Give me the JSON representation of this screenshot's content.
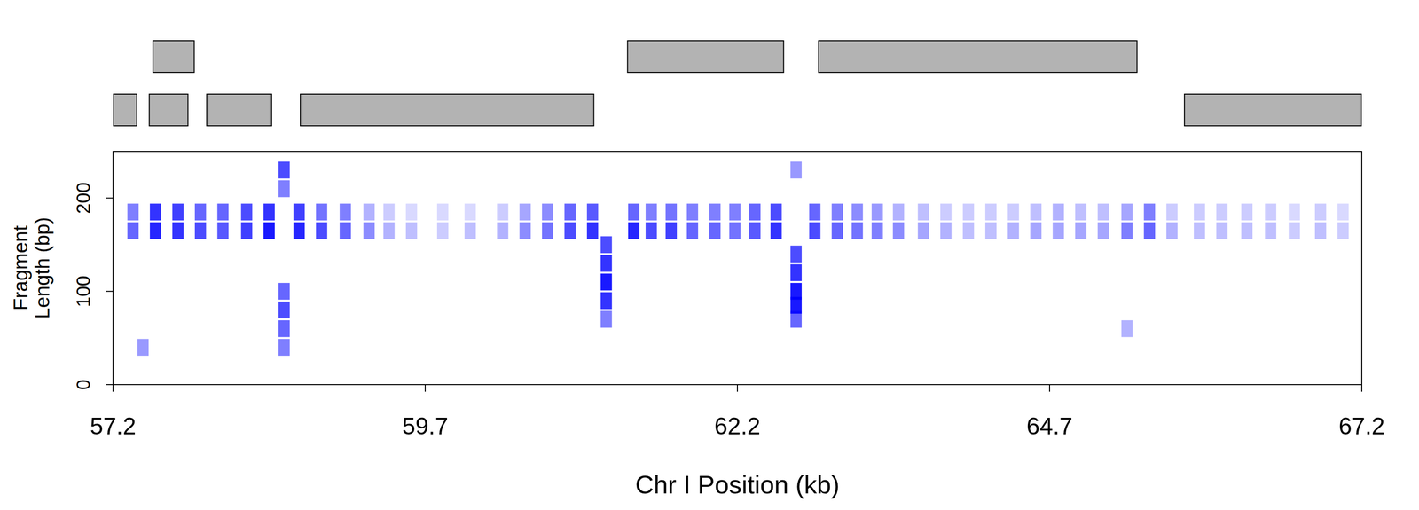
{
  "chart_data": {
    "type": "heatmap",
    "xlabel": "Chr I Position (kb)",
    "ylabel": [
      "Fragment",
      "Length (bp)"
    ],
    "xlim": [
      57.2,
      67.2
    ],
    "xticks": [
      57.2,
      59.7,
      62.2,
      64.7,
      67.2
    ],
    "ylim": [
      0,
      250
    ],
    "yticks": [
      0,
      100,
      200
    ],
    "color": "#0000ff",
    "genes": [
      {
        "start": 57.52,
        "end": 57.85,
        "row": 1
      },
      {
        "start": 61.32,
        "end": 62.57,
        "row": 1
      },
      {
        "start": 62.85,
        "end": 65.4,
        "row": 1
      },
      {
        "start": 57.2,
        "end": 57.39,
        "row": 2
      },
      {
        "start": 57.49,
        "end": 57.8,
        "row": 2
      },
      {
        "start": 57.95,
        "end": 58.47,
        "row": 2
      },
      {
        "start": 58.7,
        "end": 61.05,
        "row": 2
      },
      {
        "start": 65.78,
        "end": 67.2,
        "row": 2
      }
    ],
    "cells": {
      "x": [
        57.36,
        57.54,
        57.72,
        57.9,
        58.08,
        58.27,
        58.45,
        58.69,
        58.87,
        59.06,
        59.25,
        59.41,
        59.59,
        59.84,
        60.06,
        60.32,
        60.5,
        60.68,
        60.86,
        61.04,
        61.37,
        61.51,
        61.67,
        61.84,
        62.02,
        62.18,
        62.34,
        62.51,
        62.82,
        63.0,
        63.16,
        63.32,
        63.49,
        63.69,
        63.87,
        64.05,
        64.23,
        64.41,
        64.59,
        64.77,
        64.95,
        65.13,
        65.32,
        65.5,
        65.68,
        65.9,
        66.08,
        66.28,
        66.47,
        66.66,
        66.87,
        67.05,
        57.36,
        57.54,
        57.72,
        57.9,
        58.08,
        58.27,
        58.45,
        58.69,
        58.87,
        59.06,
        59.25,
        59.41,
        59.59,
        59.84,
        60.06,
        60.32,
        60.5,
        60.68,
        60.86,
        61.04,
        61.37,
        61.51,
        61.67,
        61.84,
        62.02,
        62.18,
        62.34,
        62.51,
        62.82,
        63.0,
        63.16,
        63.32,
        63.49,
        63.69,
        63.87,
        64.05,
        64.23,
        64.41,
        64.59,
        64.77,
        64.95,
        65.13,
        65.32,
        65.5,
        65.68,
        65.9,
        66.08,
        66.28,
        66.47,
        66.66,
        66.87,
        67.05,
        58.57,
        58.57,
        58.57,
        58.57,
        58.57,
        58.57,
        61.15,
        61.15,
        61.15,
        61.15,
        61.15,
        62.67,
        62.67,
        62.67,
        62.67,
        62.67,
        62.67,
        57.44,
        65.32
      ],
      "length": [
        165,
        165,
        165,
        165,
        165,
        165,
        165,
        165,
        165,
        165,
        165,
        165,
        165,
        165,
        165,
        165,
        165,
        165,
        165,
        165,
        165,
        165,
        165,
        165,
        165,
        165,
        165,
        165,
        165,
        165,
        165,
        165,
        165,
        165,
        165,
        165,
        165,
        165,
        165,
        165,
        165,
        165,
        165,
        165,
        165,
        165,
        165,
        165,
        165,
        165,
        165,
        165,
        185,
        185,
        185,
        185,
        185,
        185,
        185,
        185,
        185,
        185,
        185,
        185,
        185,
        185,
        185,
        185,
        185,
        185,
        185,
        185,
        185,
        185,
        185,
        185,
        185,
        185,
        185,
        185,
        185,
        185,
        185,
        185,
        185,
        185,
        185,
        185,
        185,
        185,
        185,
        185,
        185,
        185,
        185,
        185,
        185,
        185,
        185,
        185,
        185,
        185,
        185,
        185,
        230,
        210,
        100,
        80,
        60,
        40,
        150,
        130,
        110,
        90,
        70,
        230,
        140,
        120,
        100,
        85,
        70,
        40,
        60
      ],
      "density": [
        0.6,
        0.85,
        0.8,
        0.7,
        0.65,
        0.75,
        0.9,
        0.85,
        0.7,
        0.6,
        0.45,
        0.3,
        0.25,
        0.2,
        0.25,
        0.3,
        0.45,
        0.55,
        0.7,
        0.8,
        0.85,
        0.7,
        0.75,
        0.6,
        0.6,
        0.55,
        0.65,
        0.8,
        0.7,
        0.6,
        0.55,
        0.5,
        0.45,
        0.35,
        0.3,
        0.25,
        0.25,
        0.3,
        0.35,
        0.35,
        0.35,
        0.35,
        0.5,
        0.6,
        0.3,
        0.25,
        0.25,
        0.25,
        0.25,
        0.2,
        0.25,
        0.2,
        0.5,
        0.8,
        0.75,
        0.6,
        0.6,
        0.7,
        0.8,
        0.75,
        0.55,
        0.5,
        0.3,
        0.2,
        0.15,
        0.15,
        0.15,
        0.2,
        0.35,
        0.45,
        0.6,
        0.65,
        0.6,
        0.5,
        0.55,
        0.5,
        0.5,
        0.5,
        0.6,
        0.7,
        0.6,
        0.5,
        0.45,
        0.4,
        0.3,
        0.25,
        0.2,
        0.2,
        0.2,
        0.2,
        0.25,
        0.3,
        0.25,
        0.25,
        0.35,
        0.5,
        0.2,
        0.2,
        0.2,
        0.2,
        0.2,
        0.15,
        0.2,
        0.15,
        0.7,
        0.5,
        0.6,
        0.7,
        0.6,
        0.5,
        0.7,
        0.8,
        0.9,
        0.8,
        0.5,
        0.4,
        0.7,
        0.8,
        0.9,
        0.9,
        0.6,
        0.4,
        0.3
      ]
    }
  }
}
